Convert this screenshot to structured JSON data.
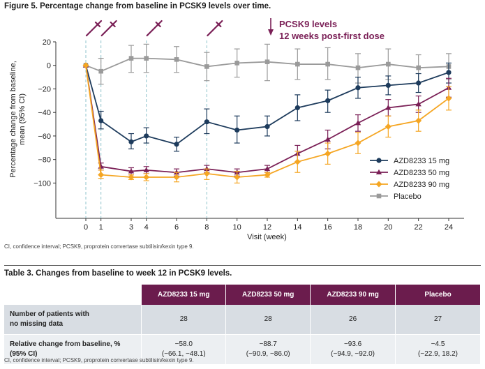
{
  "figure": {
    "title": "Figure 5. Percentage change from baseline in PCSK9 levels over time.",
    "footnote": "CI, confidence interval; PCSK9, proprotein convertase subtilisin/kexin type 9."
  },
  "chart_data": {
    "type": "line",
    "title": "Figure 5. Percentage change from baseline in PCSK9 levels over time.",
    "xlabel": "Visit (week)",
    "ylabel_lines": [
      "Percentage change from baseline,",
      "mean (95% CI)"
    ],
    "x_ticks": [
      0,
      1,
      3,
      4,
      6,
      8,
      10,
      12,
      14,
      16,
      18,
      20,
      22,
      24
    ],
    "y_ticks": [
      20,
      0,
      -20,
      -40,
      -60,
      -80,
      -100
    ],
    "y_tick_labels": [
      "20",
      "0",
      "−20",
      "−40",
      "−60",
      "−80",
      "−100"
    ],
    "xlim": [
      0,
      24
    ],
    "ylim": [
      -130,
      20
    ],
    "dose_weeks": [
      0,
      1,
      4,
      8
    ],
    "annotation": {
      "line1": "PCSK9 levels",
      "line2": "12 weeks post-first dose",
      "week": 12,
      "color": "#7a1f56"
    },
    "series": [
      {
        "name": "AZD8233 15 mg",
        "color": "#1d3b5c",
        "marker": "circle",
        "x": [
          0,
          1,
          3,
          4,
          6,
          8,
          10,
          12,
          14,
          16,
          18,
          20,
          22,
          24
        ],
        "values": [
          0,
          -47,
          -65,
          -60,
          -67,
          -48,
          -55,
          -52,
          -36,
          -30,
          -19,
          -17,
          -15,
          -6
        ],
        "lower": [
          0,
          -54,
          -71,
          -66,
          -73,
          -58,
          -66,
          -60,
          -47,
          -40,
          -28,
          -25,
          -23,
          -15
        ],
        "upper": [
          0,
          -39,
          -58,
          -53,
          -61,
          -37,
          -43,
          -43,
          -25,
          -21,
          -10,
          -9,
          -7,
          2
        ]
      },
      {
        "name": "AZD8233 50 mg",
        "color": "#7a1f56",
        "marker": "triangle",
        "x": [
          0,
          1,
          3,
          4,
          6,
          8,
          10,
          12,
          14,
          16,
          18,
          20,
          22,
          24
        ],
        "values": [
          0,
          -86,
          -90,
          -89,
          -91,
          -88,
          -91,
          -88,
          -75,
          -63,
          -49,
          -36,
          -33,
          -19
        ],
        "lower": [
          0,
          -89,
          -93,
          -92,
          -94,
          -91,
          -94,
          -91,
          -82,
          -71,
          -56,
          -43,
          -40,
          -27
        ],
        "upper": [
          0,
          -83,
          -87,
          -86,
          -88,
          -85,
          -88,
          -85,
          -68,
          -55,
          -42,
          -29,
          -26,
          -11
        ]
      },
      {
        "name": "AZD8233 90 mg",
        "color": "#f5a623",
        "marker": "diamond",
        "x": [
          0,
          1,
          3,
          4,
          6,
          8,
          10,
          12,
          14,
          16,
          18,
          20,
          22,
          24
        ],
        "values": [
          0,
          -93,
          -95,
          -95,
          -95,
          -92,
          -95,
          -93,
          -82,
          -75,
          -66,
          -52,
          -47,
          -28
        ],
        "lower": [
          0,
          -96,
          -97,
          -98,
          -99,
          -97,
          -100,
          -95,
          -91,
          -84,
          -75,
          -61,
          -56,
          -38
        ],
        "upper": [
          0,
          -89,
          -93,
          -92,
          -91,
          -88,
          -90,
          -91,
          -73,
          -66,
          -57,
          -43,
          -38,
          -18
        ]
      },
      {
        "name": "Placebo",
        "color": "#9a9a9a",
        "marker": "square",
        "x": [
          0,
          1,
          3,
          4,
          6,
          8,
          10,
          12,
          14,
          16,
          18,
          20,
          22,
          24
        ],
        "values": [
          0,
          -5,
          6,
          6,
          5,
          -1,
          2,
          3,
          1,
          1,
          -2,
          1,
          -2,
          -1
        ],
        "lower": [
          0,
          -16,
          -6,
          -6,
          -6,
          -13,
          -10,
          -13,
          -12,
          -12,
          -15,
          -12,
          -15,
          -12
        ],
        "upper": [
          0,
          6,
          17,
          18,
          16,
          11,
          14,
          18,
          14,
          15,
          10,
          14,
          9,
          10
        ]
      }
    ]
  },
  "table": {
    "title": "Table 3. Changes from baseline to week 12 in PCSK9 levels.",
    "headers": [
      "AZD8233 15 mg",
      "AZD8233 50 mg",
      "AZD8233 90 mg",
      "Placebo"
    ],
    "rows": [
      {
        "label_line1": "Number of patients with",
        "label_line2": "no missing data",
        "cells": [
          {
            "a": "28",
            "b": ""
          },
          {
            "a": "28",
            "b": ""
          },
          {
            "a": "26",
            "b": ""
          },
          {
            "a": "27",
            "b": ""
          }
        ]
      },
      {
        "label_line1": "Relative change from baseline, %",
        "label_line2": "(95% CI)",
        "cells": [
          {
            "a": "−58.0",
            "b": "(−66.1, −48.1)"
          },
          {
            "a": "−88.7",
            "b": "(−90.9, −86.0)"
          },
          {
            "a": "−93.6",
            "b": "(−94.9, −92.0)"
          },
          {
            "a": "−4.5",
            "b": "(−22.9, 18.2)"
          }
        ]
      }
    ],
    "footnote": "CI, confidence interval; PCSK9, proprotein convertase subtilisin/kexin type 9."
  }
}
